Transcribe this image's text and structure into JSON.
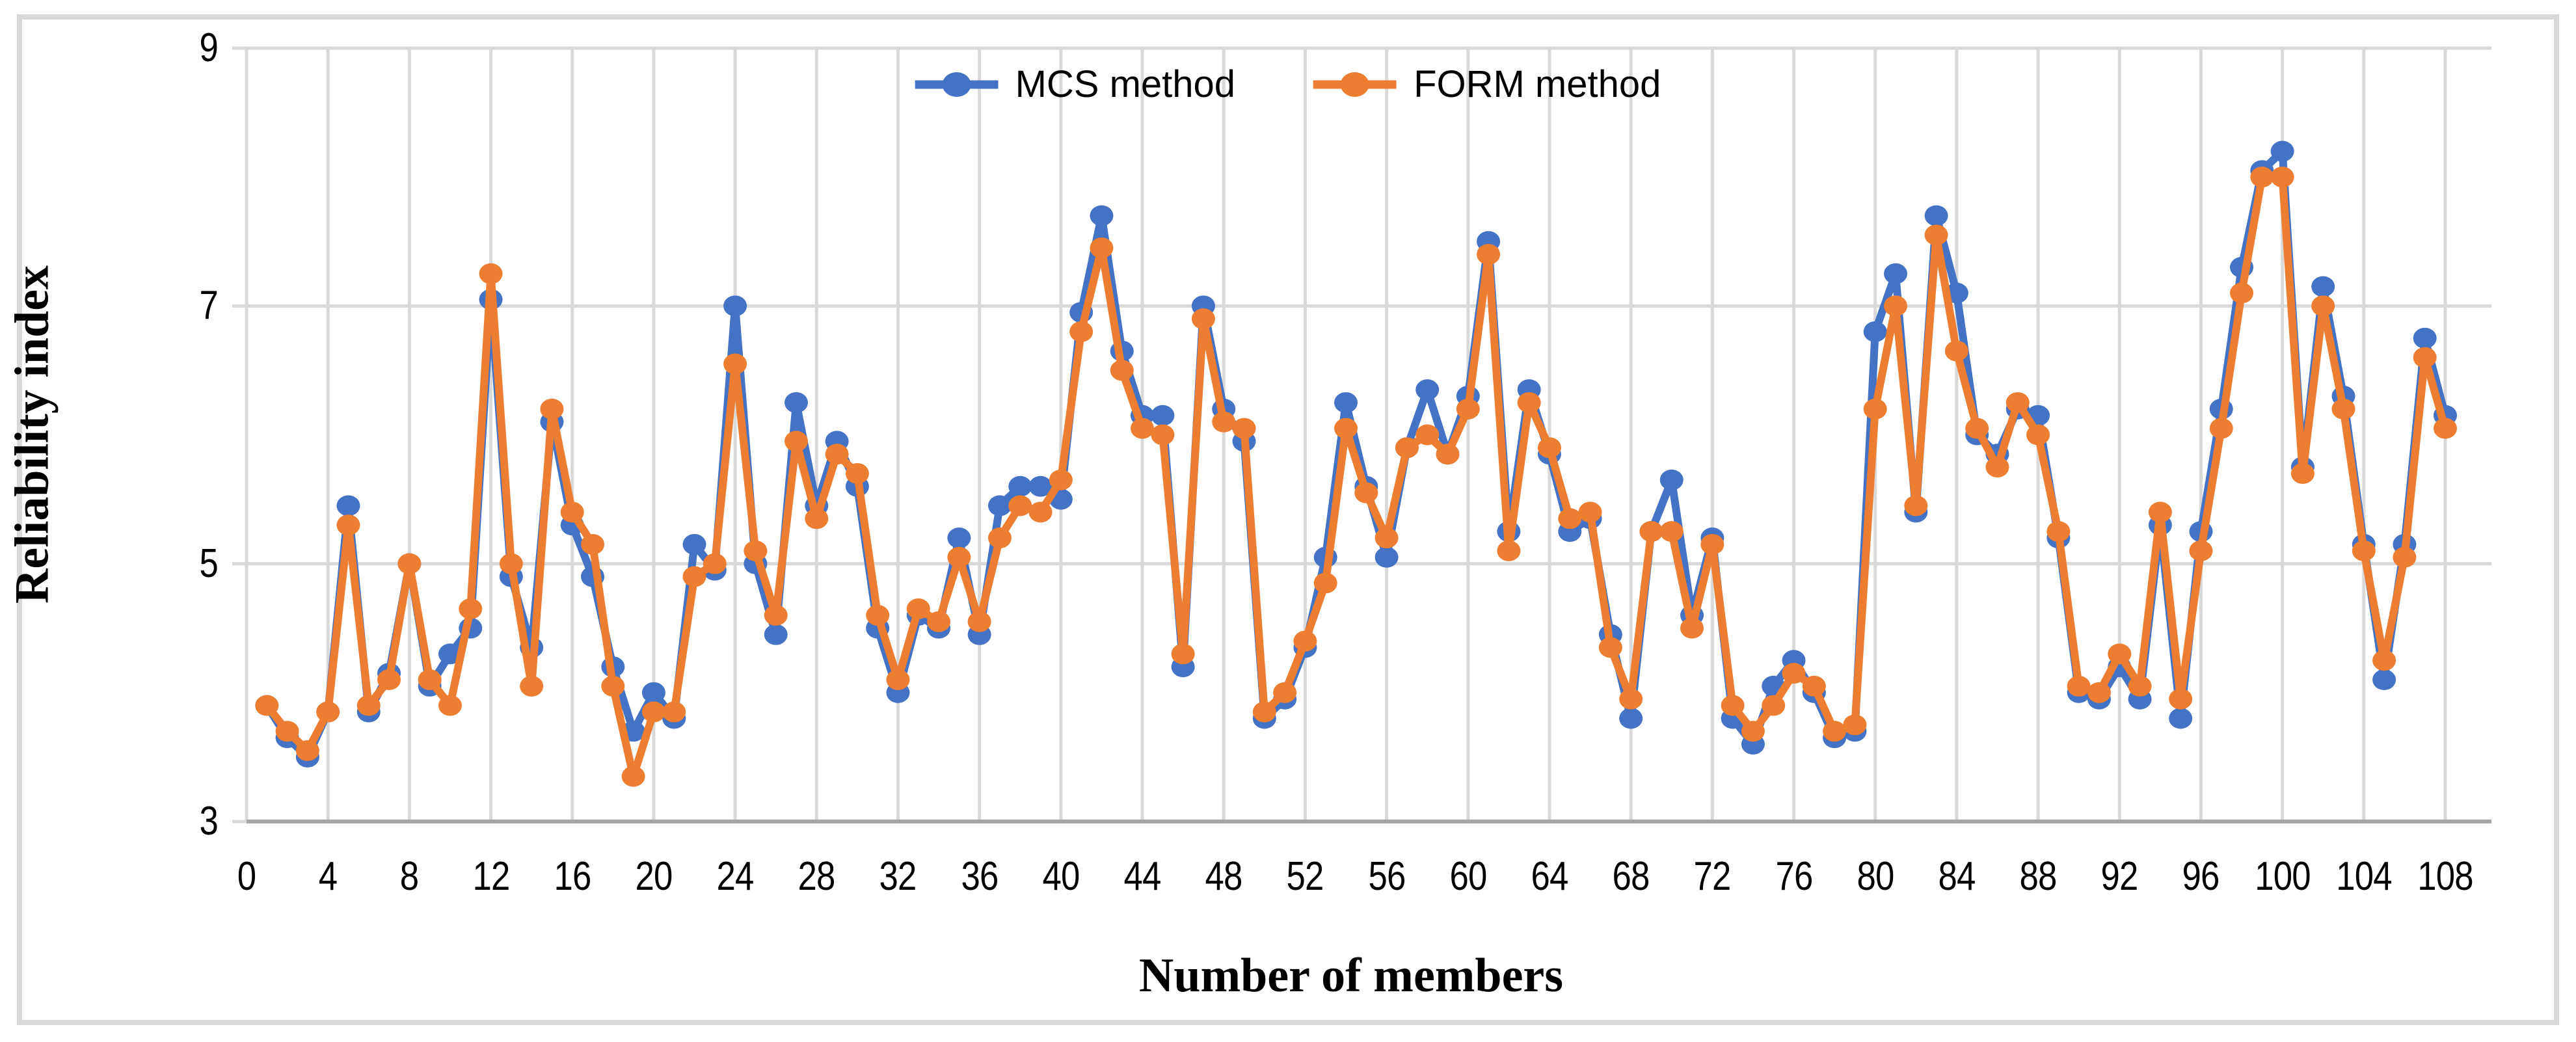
{
  "figure": {
    "border_color": "#d9d9d9",
    "background": "#ffffff"
  },
  "chart_data": {
    "type": "line",
    "title": "",
    "xlabel": "Number of members",
    "ylabel": "Reliability index",
    "xlim": [
      0,
      110
    ],
    "ylim": [
      3,
      9
    ],
    "grid": true,
    "legend_position": "top-center",
    "x_ticks": [
      0,
      4,
      8,
      12,
      16,
      20,
      24,
      28,
      32,
      36,
      40,
      44,
      48,
      52,
      56,
      60,
      64,
      68,
      72,
      76,
      80,
      84,
      88,
      92,
      96,
      100,
      104,
      108
    ],
    "y_ticks": [
      3,
      5,
      7,
      9
    ],
    "x": [
      1,
      2,
      3,
      4,
      5,
      6,
      7,
      8,
      9,
      10,
      11,
      12,
      13,
      14,
      15,
      16,
      17,
      18,
      19,
      20,
      21,
      22,
      23,
      24,
      25,
      26,
      27,
      28,
      29,
      30,
      31,
      32,
      33,
      34,
      35,
      36,
      37,
      38,
      39,
      40,
      41,
      42,
      43,
      44,
      45,
      46,
      47,
      48,
      49,
      50,
      51,
      52,
      53,
      54,
      55,
      56,
      57,
      58,
      59,
      60,
      61,
      62,
      63,
      64,
      65,
      66,
      67,
      68,
      69,
      70,
      71,
      72,
      73,
      74,
      75,
      76,
      77,
      78,
      79,
      80,
      81,
      82,
      83,
      84,
      85,
      86,
      87,
      88,
      89,
      90,
      91,
      92,
      93,
      94,
      95,
      96,
      97,
      98,
      99,
      100,
      101,
      102,
      103,
      104,
      105,
      106,
      107,
      108
    ],
    "series": [
      {
        "name": "MCS method",
        "color": "#4472C4",
        "values": [
          3.9,
          3.65,
          3.5,
          3.85,
          5.45,
          3.85,
          4.15,
          5.0,
          4.05,
          4.3,
          4.5,
          7.05,
          4.9,
          4.35,
          6.1,
          5.3,
          4.9,
          4.2,
          3.7,
          4.0,
          3.8,
          5.15,
          4.95,
          7.0,
          5.0,
          4.45,
          6.25,
          5.45,
          5.95,
          5.6,
          4.5,
          4.0,
          4.6,
          4.5,
          5.2,
          4.45,
          5.45,
          5.6,
          5.6,
          5.5,
          6.95,
          7.7,
          6.65,
          6.15,
          6.15,
          4.2,
          7.0,
          6.2,
          5.95,
          3.8,
          3.95,
          4.35,
          5.05,
          6.25,
          5.6,
          5.05,
          5.9,
          6.35,
          5.85,
          6.3,
          7.5,
          5.25,
          6.35,
          5.85,
          5.25,
          5.35,
          4.45,
          3.8,
          5.25,
          5.65,
          4.6,
          5.2,
          3.8,
          3.6,
          4.05,
          4.25,
          4.0,
          3.65,
          3.7,
          6.8,
          7.25,
          5.4,
          7.7,
          7.1,
          6.0,
          5.85,
          6.2,
          6.15,
          5.2,
          4.0,
          3.95,
          4.2,
          3.95,
          5.3,
          3.8,
          5.25,
          6.2,
          7.3,
          8.05,
          8.2,
          5.75,
          7.15,
          6.3,
          5.15,
          4.1,
          5.15,
          6.75,
          6.15
        ]
      },
      {
        "name": "FORM method",
        "color": "#ED7D31",
        "values": [
          3.9,
          3.7,
          3.55,
          3.85,
          5.3,
          3.9,
          4.1,
          5.0,
          4.1,
          3.9,
          4.65,
          7.25,
          5.0,
          4.05,
          6.2,
          5.4,
          5.15,
          4.05,
          3.35,
          3.85,
          3.85,
          4.9,
          5.0,
          6.55,
          5.1,
          4.6,
          5.95,
          5.35,
          5.85,
          5.7,
          4.6,
          4.1,
          4.65,
          4.55,
          5.05,
          4.55,
          5.2,
          5.45,
          5.4,
          5.65,
          6.8,
          7.45,
          6.5,
          6.05,
          6.0,
          4.3,
          6.9,
          6.1,
          6.05,
          3.85,
          4.0,
          4.4,
          4.85,
          6.05,
          5.55,
          5.2,
          5.9,
          6.0,
          5.85,
          6.2,
          7.4,
          5.1,
          6.25,
          5.9,
          5.35,
          5.4,
          4.35,
          3.95,
          5.25,
          5.25,
          4.5,
          5.15,
          3.9,
          3.7,
          3.9,
          4.15,
          4.05,
          3.7,
          3.75,
          6.2,
          7.0,
          5.45,
          7.55,
          6.65,
          6.05,
          5.75,
          6.25,
          6.0,
          5.25,
          4.05,
          4.0,
          4.3,
          4.05,
          5.4,
          3.95,
          5.1,
          6.05,
          7.1,
          8.0,
          8.0,
          5.7,
          7.0,
          6.2,
          5.1,
          4.25,
          5.05,
          6.6,
          6.05
        ]
      }
    ],
    "style": {
      "grid_color": "#d9d9d9",
      "axis_line_color": "#a6a6a6",
      "tick_label_color": "#000000"
    }
  }
}
